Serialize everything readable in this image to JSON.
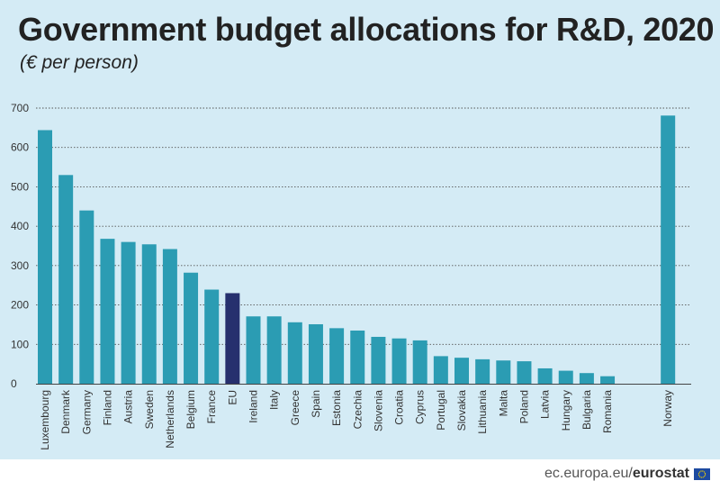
{
  "title": "Government budget allocations for R&D, 2020",
  "subtitle": "(€ per person)",
  "footer": {
    "site": "ec.europa.eu/",
    "brand": "eurostat",
    "flag_icon": "eu-flag-icon"
  },
  "colors": {
    "bar": "#2b9cb3",
    "highlight": "#26306e",
    "background": "#d4ebf5",
    "grid": "#555555"
  },
  "chart_data": {
    "type": "bar",
    "categories": [
      "Luxembourg",
      "Denmark",
      "Germany",
      "Finland",
      "Austria",
      "Sweden",
      "Netherlands",
      "Belgium",
      "France",
      "EU",
      "Ireland",
      "Italy",
      "Greece",
      "Spain",
      "Estonia",
      "Czechia",
      "Slovenia",
      "Croatia",
      "Cyprus",
      "Portugal",
      "Slovakia",
      "Lithuania",
      "Malta",
      "Poland",
      "Latvia",
      "Hungary",
      "Bulgaria",
      "Romania",
      "Norway"
    ],
    "values": [
      644,
      530,
      440,
      368,
      360,
      354,
      342,
      282,
      239,
      230,
      171,
      171,
      156,
      151,
      141,
      135,
      119,
      115,
      110,
      70,
      66,
      62,
      59,
      57,
      39,
      33,
      27,
      19,
      681
    ],
    "highlight_category": "EU",
    "gap_before": "Norway",
    "ylim": [
      0,
      700
    ],
    "yticks": [
      0,
      100,
      200,
      300,
      400,
      500,
      600,
      700
    ],
    "grid": true,
    "legend": "none",
    "xlabel": "",
    "ylabel": ""
  }
}
